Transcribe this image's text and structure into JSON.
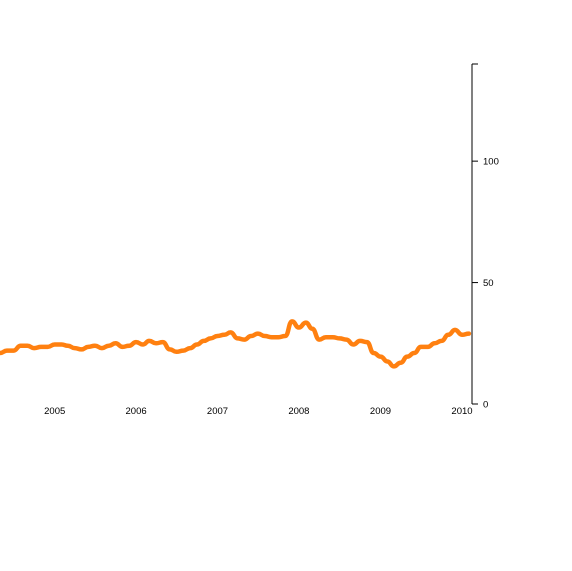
{
  "chart_data": {
    "type": "line",
    "title": "",
    "xlabel": "",
    "ylabel": "",
    "x_range": [
      "2004-05-01",
      "2010-02-15"
    ],
    "ylim": [
      0,
      140
    ],
    "x_ticks": [
      {
        "date": "2005-01-01",
        "label": "2005"
      },
      {
        "date": "2006-01-01",
        "label": "2006"
      },
      {
        "date": "2007-01-01",
        "label": "2007"
      },
      {
        "date": "2008-01-01",
        "label": "2008"
      },
      {
        "date": "2009-01-01",
        "label": "2009"
      },
      {
        "date": "2010-01-01",
        "label": "2010"
      }
    ],
    "y_ticks": [
      {
        "value": 0,
        "label": "0"
      },
      {
        "value": 50,
        "label": "50"
      },
      {
        "value": 100,
        "label": "100"
      }
    ],
    "y_axis_side": "right",
    "grid": false,
    "colors": {
      "series": "#ff8010",
      "axis": "#000000"
    },
    "series": [
      {
        "x": [
          "2004-05-01",
          "2004-06-01",
          "2004-07-01",
          "2004-08-01",
          "2004-09-01",
          "2004-10-01",
          "2004-11-01",
          "2004-12-01",
          "2005-01-01",
          "2005-02-01",
          "2005-03-01",
          "2005-04-01",
          "2005-05-01",
          "2005-06-01",
          "2005-07-01",
          "2005-08-01",
          "2005-09-01",
          "2005-10-01",
          "2005-11-01",
          "2005-12-01",
          "2006-01-01",
          "2006-02-01",
          "2006-03-01",
          "2006-04-01",
          "2006-05-01",
          "2006-06-01",
          "2006-07-01",
          "2006-08-01",
          "2006-09-01",
          "2006-10-01",
          "2006-11-01",
          "2006-12-01",
          "2007-01-01",
          "2007-02-01",
          "2007-03-01",
          "2007-04-01",
          "2007-05-01",
          "2007-06-01",
          "2007-07-01",
          "2007-08-01",
          "2007-09-01",
          "2007-10-01",
          "2007-11-01",
          "2007-12-01",
          "2008-01-01",
          "2008-02-01",
          "2008-03-01",
          "2008-04-01",
          "2008-05-01",
          "2008-06-01",
          "2008-07-01",
          "2008-08-01",
          "2008-09-01",
          "2008-10-01",
          "2008-11-01",
          "2008-12-01",
          "2009-01-01",
          "2009-02-01",
          "2009-03-01",
          "2009-04-01",
          "2009-05-01",
          "2009-06-01",
          "2009-07-01",
          "2009-08-01",
          "2009-09-01",
          "2009-10-01",
          "2009-11-01",
          "2009-12-01",
          "2010-01-01",
          "2010-02-01"
        ],
        "y": [
          21,
          22,
          22,
          24,
          24,
          23,
          23.5,
          23.5,
          24.5,
          24.5,
          24,
          23,
          22.5,
          23.5,
          24,
          23,
          24,
          25,
          23.5,
          24,
          25.5,
          24.5,
          26,
          25,
          25.5,
          22.5,
          21.5,
          22,
          23,
          24.5,
          26,
          27,
          28,
          28.5,
          29.5,
          27,
          26.5,
          28,
          29,
          28,
          27.5,
          27.5,
          28,
          34,
          31.5,
          33.5,
          31,
          26.5,
          27.5,
          27.5,
          27,
          26.5,
          24.5,
          26,
          25.5,
          21,
          19.5,
          17.5,
          15.5,
          17,
          19.5,
          21,
          23.5,
          23.5,
          25,
          26,
          28.5,
          30.5,
          28.5,
          29
        ]
      }
    ]
  }
}
